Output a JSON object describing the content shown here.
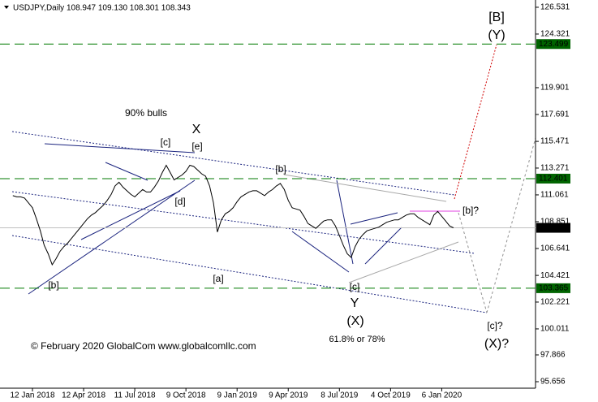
{
  "chart_data": {
    "type": "line",
    "title": "USDJPY,Daily  108.947 109.130 108.301 108.343",
    "copyright": "© February 2020 GlobalCom www.globalcomllc.com",
    "color": "#000000",
    "categories": [
      null,
      null,
      null,
      null,
      null,
      "12 Jan 2018",
      null,
      null,
      null,
      null,
      null,
      null,
      null,
      null,
      null,
      null,
      null,
      null,
      "12 Apr 2018",
      null,
      null,
      null,
      null,
      null,
      null,
      null,
      null,
      null,
      null,
      null,
      null,
      "11 Jul 2018",
      null,
      null,
      null,
      null,
      null,
      null,
      null,
      null,
      null,
      null,
      null,
      null,
      "9 Oct 2018",
      null,
      null,
      null,
      null,
      null,
      null,
      null,
      null,
      null,
      null,
      null,
      null,
      "9 Jan 2019",
      null,
      null,
      null,
      null,
      null,
      null,
      null,
      null,
      null,
      null,
      null,
      null,
      "9 Apr 2019",
      null,
      null,
      null,
      null,
      null,
      null,
      null,
      null,
      null,
      null,
      null,
      null,
      "8 Jul 2019",
      null,
      null,
      null,
      null,
      null,
      null,
      null,
      null,
      null,
      null,
      null,
      null,
      "4 Oct 2019",
      null,
      null,
      null,
      null,
      null,
      null,
      null,
      null,
      null,
      null,
      null,
      null,
      "6 Jan 2020",
      null,
      null,
      null
    ],
    "values": [
      111.0,
      110.9,
      110.9,
      110.8,
      110.4,
      110.0,
      109.1,
      108.1,
      106.9,
      106.2,
      105.3,
      105.8,
      106.4,
      106.8,
      107.1,
      107.5,
      107.9,
      108.3,
      108.7,
      109.1,
      109.4,
      109.6,
      109.9,
      110.2,
      110.6,
      111.1,
      111.8,
      112.1,
      111.7,
      111.4,
      111.1,
      110.9,
      111.2,
      111.5,
      111.3,
      111.3,
      111.7,
      112.2,
      112.9,
      113.5,
      112.9,
      112.3,
      112.5,
      112.7,
      113.0,
      113.5,
      113.4,
      113.1,
      112.8,
      112.6,
      111.8,
      110.4,
      108.0,
      109.0,
      109.5,
      109.7,
      110.0,
      110.5,
      110.9,
      111.1,
      111.3,
      111.4,
      111.4,
      111.2,
      111.0,
      111.3,
      111.5,
      111.8,
      112.0,
      111.5,
      110.6,
      110.0,
      109.9,
      109.8,
      109.3,
      108.7,
      108.5,
      108.3,
      108.6,
      108.9,
      109.0,
      109.0,
      108.5,
      107.7,
      106.9,
      106.2,
      105.9,
      106.8,
      107.4,
      107.8,
      108.1,
      108.2,
      108.3,
      108.4,
      108.6,
      108.8,
      108.9,
      109.0,
      109.0,
      109.2,
      109.4,
      109.5,
      109.5,
      109.2,
      109.0,
      108.8,
      108.6,
      109.4,
      109.7,
      109.3,
      108.9,
      108.5,
      108.343
    ],
    "ylim": [
      95.12,
      127.13
    ],
    "yticks": [
      126.531,
      124.321,
      119.901,
      117.691,
      115.471,
      113.271,
      111.061,
      108.851,
      106.641,
      104.421,
      102.221,
      100.011,
      97.866,
      95.656
    ],
    "levels": [
      {
        "value": 123.499,
        "color": "#007a00",
        "style": "dashed"
      },
      {
        "value": 112.401,
        "color": "#007a00",
        "style": "dashed"
      },
      {
        "value": 108.343,
        "color": "#c0c0c0",
        "style": "solid"
      },
      {
        "value": 103.365,
        "color": "#007a00",
        "style": "dashed"
      }
    ],
    "annotations": [
      {
        "text": "90% bulls",
        "color": "#d00000"
      },
      {
        "text": "X",
        "color": "#a00000"
      },
      {
        "text": "[c]",
        "color": "#2e8b2e"
      },
      {
        "text": "[e]",
        "color": "#2e8b2e"
      },
      {
        "text": "[d]",
        "color": "#2e8b2e"
      },
      {
        "text": "[b]",
        "color": "#2e8b2e"
      },
      {
        "text": "[a]",
        "color": "#2e8b2e"
      },
      {
        "text": "[b]",
        "color": "#2e8b2e"
      },
      {
        "text": "[c]",
        "color": "#2e8b2e"
      },
      {
        "text": "Y",
        "color": "#a00000"
      },
      {
        "text": "(X)",
        "color": "#1a237e"
      },
      {
        "text": "61.8% or 78%",
        "color": "#1a237e"
      },
      {
        "text": "[B]",
        "color": "#2e8b2e"
      },
      {
        "text": "(Y)",
        "color": "#1a237e"
      },
      {
        "text": "[b]?",
        "color": "#a0a0a0"
      },
      {
        "text": "[c]?",
        "color": "#a0a0a0"
      },
      {
        "text": "(X)?",
        "color": "#a0a0a0"
      }
    ]
  }
}
